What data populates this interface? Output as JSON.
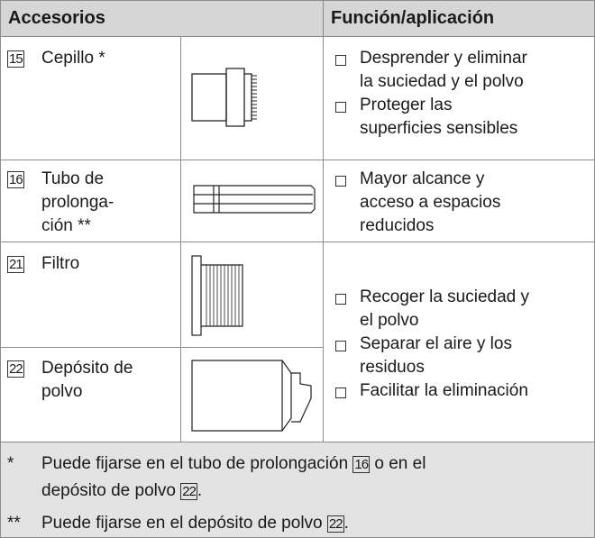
{
  "header": {
    "col1": "Accesorios",
    "col2": "Función/aplicación"
  },
  "rows": [
    {
      "ref": "15",
      "name_lines": [
        "Cepillo *"
      ],
      "functions": [
        [
          "Desprender y eliminar",
          "la suciedad y el polvo"
        ],
        [
          "Proteger las",
          "superficies sensibles"
        ]
      ]
    },
    {
      "ref": "16",
      "name_lines": [
        "Tubo de",
        "prolonga-",
        "ción **"
      ],
      "functions": [
        [
          "Mayor alcance y",
          "acceso a espacios",
          "reducidos"
        ]
      ]
    },
    {
      "ref": "21",
      "name_lines": [
        "Filtro"
      ]
    },
    {
      "ref": "22",
      "name_lines": [
        "Depósito de",
        "polvo"
      ]
    }
  ],
  "shared_functions": [
    [
      "Recoger la suciedad y",
      "el polvo"
    ],
    [
      "Separar el aire y los",
      "residuos"
    ],
    [
      "Facilitar la eliminación"
    ]
  ],
  "notes": [
    {
      "mark": "*",
      "lines": [
        [
          "Puede fijarse en el tubo de prolongación ",
          "16",
          " o en el"
        ],
        [
          "depósito de polvo ",
          "22",
          "."
        ]
      ]
    },
    {
      "mark": "**",
      "lines": [
        [
          "Puede fijarse en el depósito de polvo ",
          "22",
          "."
        ]
      ]
    }
  ]
}
